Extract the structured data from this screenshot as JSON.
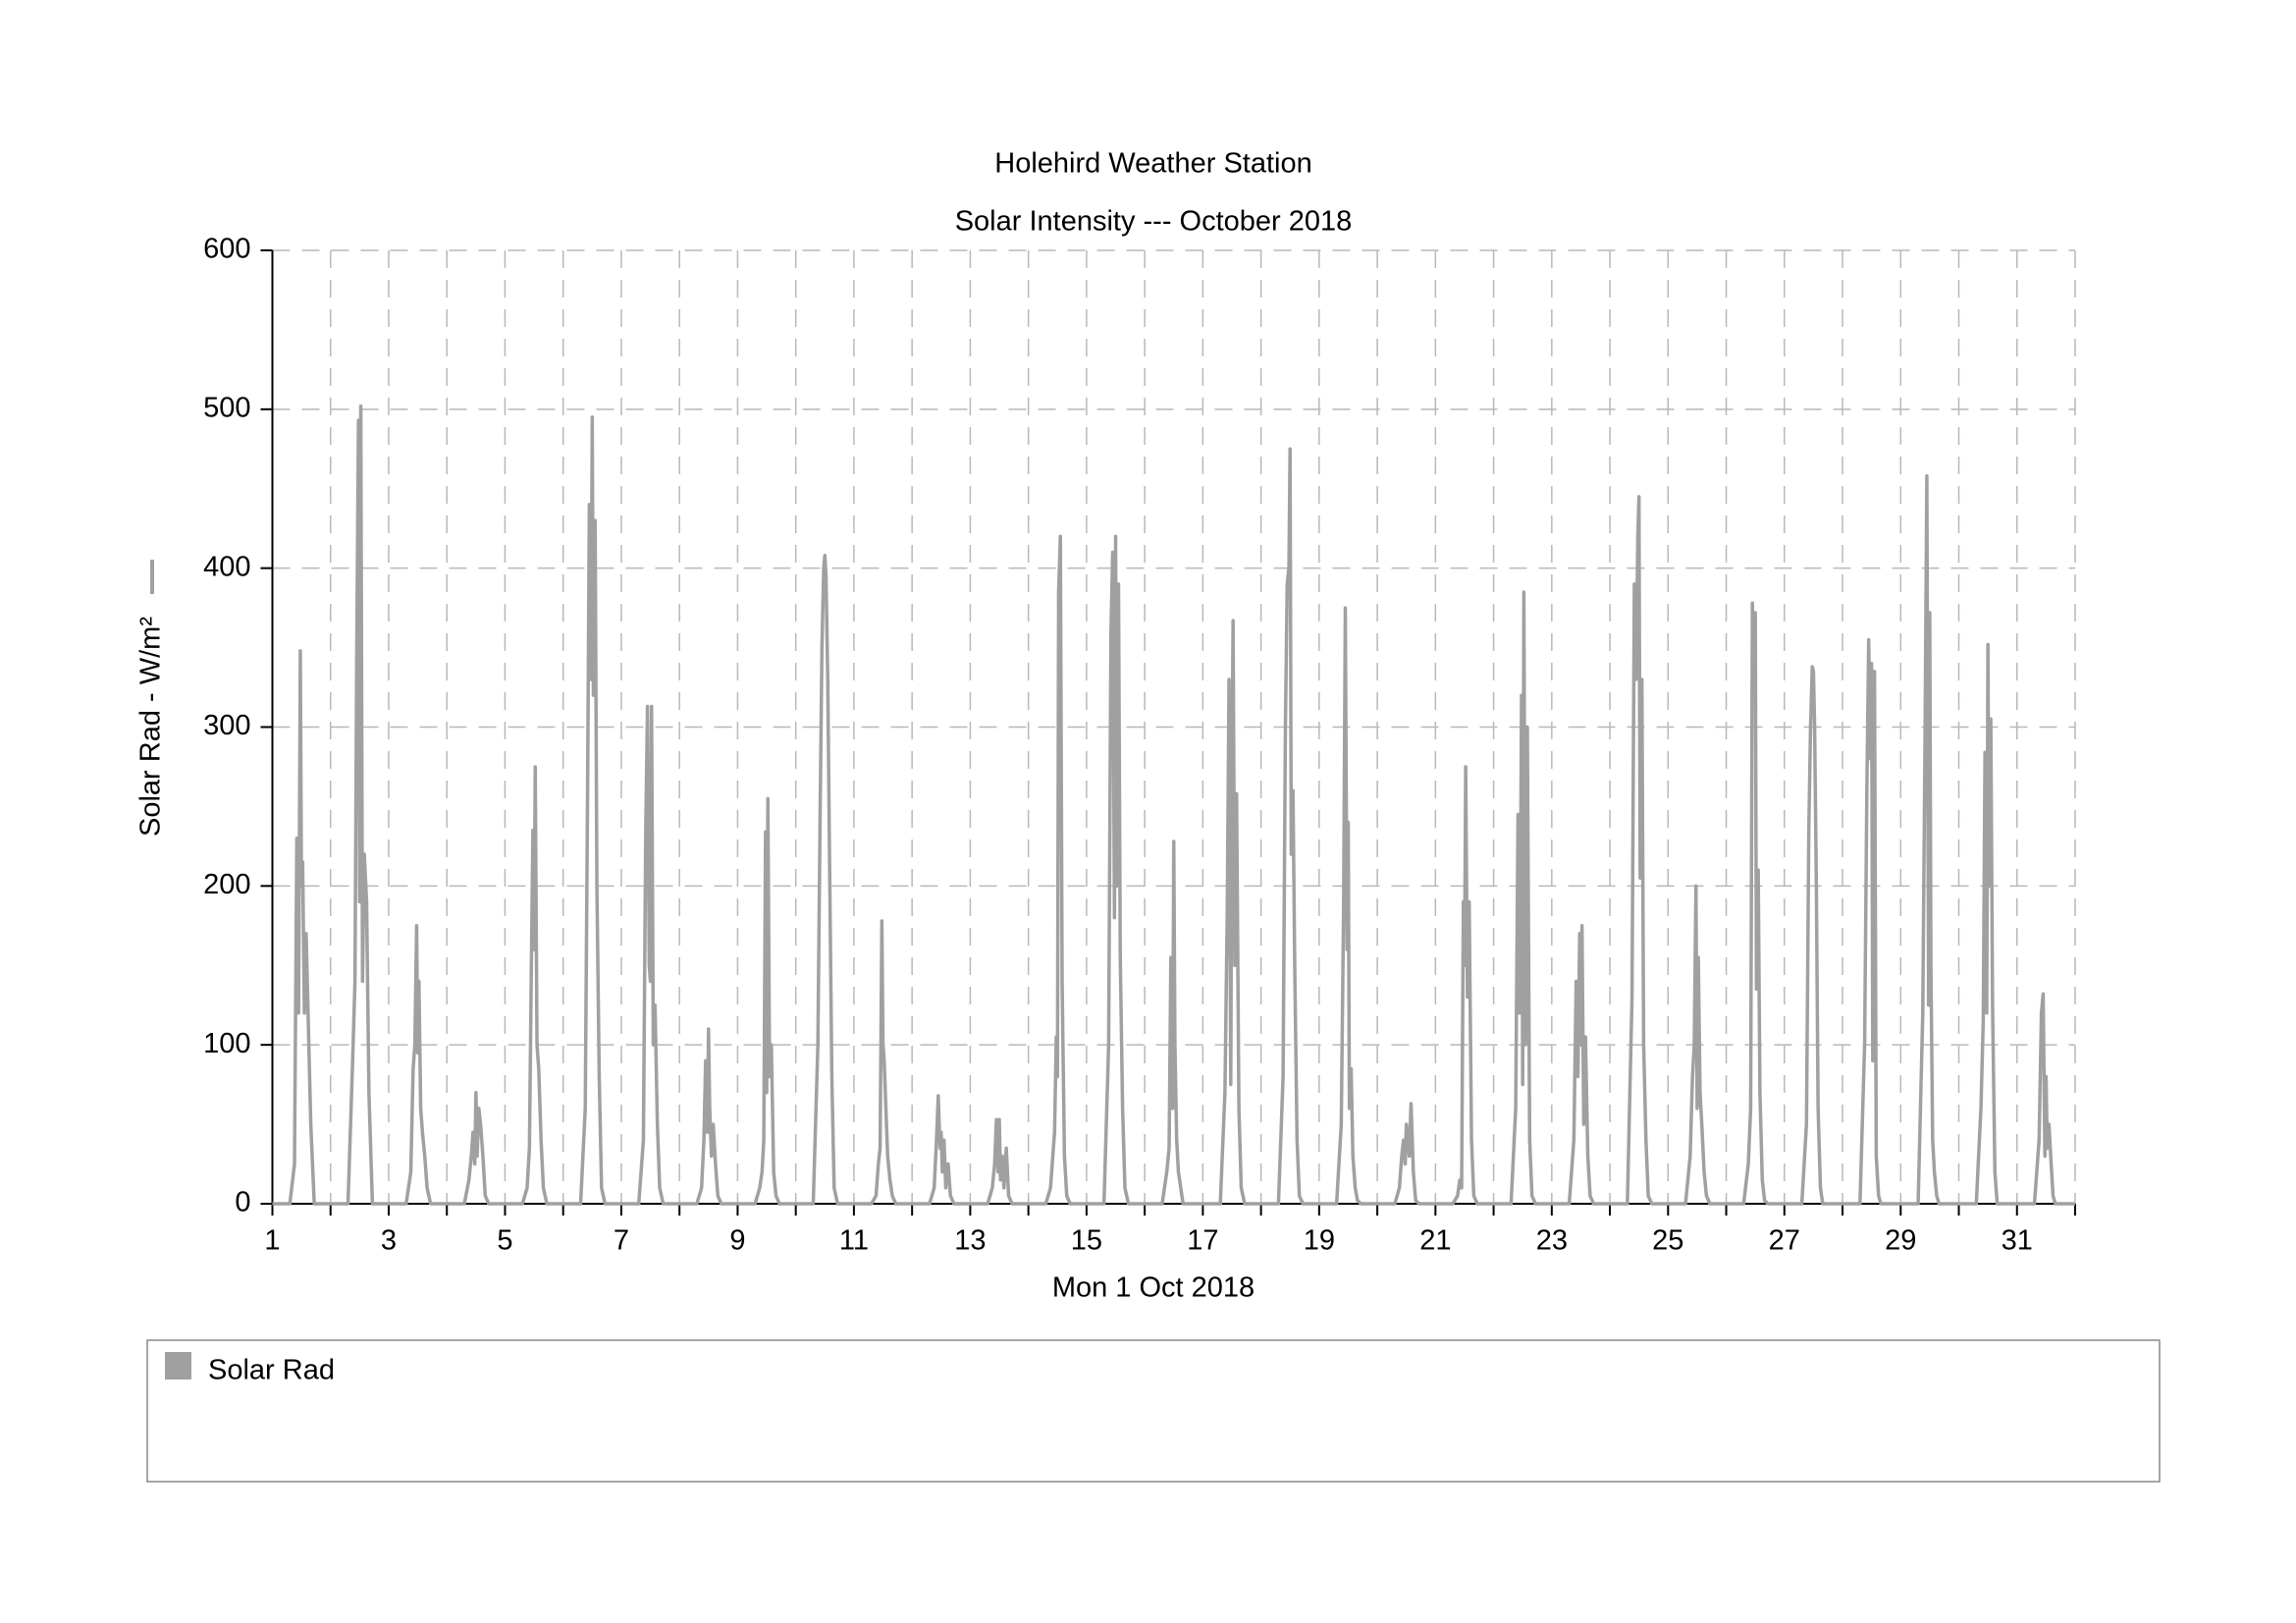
{
  "chart_data": {
    "type": "line",
    "title": "Holehird Weather Station",
    "subtitle": "Solar Intensity --- October 2018",
    "x_label": "Mon 1 Oct 2018",
    "y_label": "Solar Rad - W/m²",
    "xlim": [
      1,
      32
    ],
    "ylim": [
      0,
      600
    ],
    "xticks": [
      1,
      3,
      5,
      7,
      9,
      11,
      13,
      15,
      17,
      19,
      21,
      23,
      25,
      27,
      29,
      31
    ],
    "xminorticks": [
      2,
      4,
      6,
      8,
      10,
      12,
      14,
      16,
      18,
      20,
      22,
      24,
      26,
      28,
      30,
      32
    ],
    "yticks": [
      0,
      100,
      200,
      300,
      400,
      500,
      600
    ],
    "grid": true,
    "legend": "bottom",
    "x": [
      1,
      1.3,
      1.38,
      1.42,
      1.45,
      1.48,
      1.5,
      1.52,
      1.55,
      1.58,
      1.62,
      1.66,
      1.72,
      2.3,
      2.38,
      2.42,
      2.45,
      2.48,
      2.5,
      2.52,
      2.55,
      2.58,
      2.62,
      2.66,
      2.72,
      3.3,
      3.38,
      3.42,
      3.45,
      3.48,
      3.5,
      3.52,
      3.55,
      3.58,
      3.62,
      3.66,
      3.72,
      4.3,
      4.38,
      4.42,
      4.45,
      4.48,
      4.5,
      4.52,
      4.55,
      4.58,
      4.62,
      4.66,
      4.72,
      5.3,
      5.38,
      5.42,
      5.45,
      5.48,
      5.5,
      5.52,
      5.55,
      5.58,
      5.62,
      5.66,
      5.72,
      6.3,
      6.38,
      6.42,
      6.45,
      6.48,
      6.5,
      6.52,
      6.55,
      6.58,
      6.62,
      6.66,
      6.72,
      7.3,
      7.38,
      7.42,
      7.45,
      7.48,
      7.5,
      7.52,
      7.55,
      7.58,
      7.62,
      7.66,
      7.72,
      8.3,
      8.38,
      8.42,
      8.45,
      8.48,
      8.5,
      8.52,
      8.55,
      8.58,
      8.62,
      8.66,
      8.72,
      9.3,
      9.38,
      9.42,
      9.45,
      9.48,
      9.5,
      9.52,
      9.55,
      9.58,
      9.62,
      9.66,
      9.72,
      10.3,
      10.38,
      10.42,
      10.45,
      10.48,
      10.5,
      10.52,
      10.55,
      10.58,
      10.62,
      10.66,
      10.72,
      11.3,
      11.38,
      11.42,
      11.45,
      11.48,
      11.5,
      11.52,
      11.55,
      11.58,
      11.62,
      11.66,
      11.72,
      12.3,
      12.38,
      12.42,
      12.45,
      12.48,
      12.5,
      12.52,
      12.55,
      12.58,
      12.62,
      12.66,
      12.72,
      13.3,
      13.38,
      13.42,
      13.45,
      13.48,
      13.5,
      13.52,
      13.55,
      13.58,
      13.62,
      13.66,
      13.72,
      14.3,
      14.38,
      14.42,
      14.45,
      14.48,
      14.5,
      14.52,
      14.55,
      14.58,
      14.62,
      14.66,
      14.72,
      15.3,
      15.38,
      15.42,
      15.45,
      15.48,
      15.5,
      15.52,
      15.55,
      15.58,
      15.62,
      15.66,
      15.72,
      16.3,
      16.38,
      16.42,
      16.45,
      16.48,
      16.5,
      16.52,
      16.55,
      16.58,
      16.62,
      16.66,
      16.72,
      17.3,
      17.38,
      17.42,
      17.45,
      17.48,
      17.5,
      17.52,
      17.55,
      17.58,
      17.62,
      17.66,
      17.72,
      18.3,
      18.38,
      18.42,
      18.45,
      18.48,
      18.5,
      18.52,
      18.55,
      18.58,
      18.62,
      18.66,
      18.72,
      19.3,
      19.38,
      19.42,
      19.45,
      19.48,
      19.5,
      19.52,
      19.55,
      19.58,
      19.62,
      19.66,
      19.72,
      20.3,
      20.38,
      20.42,
      20.45,
      20.48,
      20.5,
      20.52,
      20.55,
      20.58,
      20.62,
      20.66,
      20.72,
      21.3,
      21.38,
      21.42,
      21.45,
      21.48,
      21.5,
      21.52,
      21.55,
      21.58,
      21.62,
      21.66,
      21.72,
      22.3,
      22.38,
      22.42,
      22.45,
      22.48,
      22.5,
      22.52,
      22.55,
      22.58,
      22.62,
      22.66,
      22.72,
      23.3,
      23.38,
      23.42,
      23.45,
      23.48,
      23.5,
      23.52,
      23.55,
      23.58,
      23.62,
      23.66,
      23.72,
      24.3,
      24.38,
      24.42,
      24.45,
      24.48,
      24.5,
      24.52,
      24.55,
      24.58,
      24.62,
      24.66,
      24.72,
      25.3,
      25.38,
      25.42,
      25.45,
      25.48,
      25.5,
      25.52,
      25.55,
      25.58,
      25.62,
      25.66,
      25.72,
      26.3,
      26.38,
      26.42,
      26.45,
      26.48,
      26.5,
      26.52,
      26.55,
      26.58,
      26.62,
      26.66,
      26.72,
      27.3,
      27.38,
      27.42,
      27.45,
      27.48,
      27.5,
      27.52,
      27.55,
      27.58,
      27.62,
      27.66,
      27.72,
      28.3,
      28.38,
      28.42,
      28.45,
      28.48,
      28.5,
      28.52,
      28.55,
      28.58,
      28.62,
      28.66,
      28.72,
      29.3,
      29.38,
      29.42,
      29.45,
      29.48,
      29.5,
      29.52,
      29.55,
      29.58,
      29.62,
      29.66,
      29.72,
      30.3,
      30.38,
      30.42,
      30.45,
      30.48,
      30.5,
      30.52,
      30.55,
      30.58,
      30.62,
      30.66,
      30.72,
      31.3,
      31.38,
      31.42,
      31.45,
      31.48,
      31.5,
      31.52,
      31.55,
      31.58,
      31.62,
      31.66,
      31.72,
      32
    ],
    "series": [
      {
        "name": "Solar Rad",
        "color": "#a0a0a0",
        "values": [
          0,
          0,
          25,
          230,
          120,
          348,
          200,
          215,
          120,
          170,
          110,
          50,
          0,
          0,
          90,
          140,
          345,
          493,
          190,
          502,
          140,
          220,
          190,
          70,
          0,
          0,
          20,
          85,
          100,
          175,
          95,
          140,
          60,
          45,
          30,
          10,
          0,
          0,
          15,
          30,
          45,
          25,
          70,
          30,
          60,
          50,
          30,
          5,
          0,
          0,
          10,
          35,
          140,
          235,
          160,
          275,
          100,
          85,
          40,
          10,
          0,
          0,
          60,
          260,
          440,
          330,
          495,
          320,
          430,
          200,
          80,
          10,
          0,
          0,
          40,
          235,
          313,
          150,
          140,
          313,
          100,
          125,
          50,
          10,
          0,
          0,
          10,
          40,
          90,
          45,
          110,
          60,
          30,
          50,
          25,
          5,
          0,
          0,
          10,
          20,
          40,
          234,
          70,
          255,
          80,
          100,
          20,
          5,
          0,
          0,
          100,
          250,
          350,
          400,
          408,
          395,
          330,
          220,
          80,
          10,
          0,
          0,
          5,
          25,
          35,
          178,
          100,
          90,
          60,
          30,
          15,
          5,
          0,
          0,
          10,
          40,
          68,
          35,
          45,
          20,
          40,
          10,
          25,
          5,
          0,
          0,
          10,
          25,
          53,
          20,
          53,
          15,
          30,
          10,
          35,
          5,
          0,
          0,
          10,
          30,
          45,
          105,
          80,
          385,
          420,
          140,
          30,
          5,
          0,
          0,
          100,
          360,
          410,
          180,
          420,
          200,
          390,
          155,
          60,
          10,
          0,
          0,
          20,
          35,
          155,
          60,
          228,
          100,
          40,
          20,
          10,
          0,
          0,
          0,
          70,
          185,
          330,
          75,
          270,
          367,
          150,
          258,
          60,
          10,
          0,
          0,
          80,
          300,
          390,
          400,
          475,
          220,
          260,
          150,
          40,
          5,
          0,
          0,
          50,
          185,
          375,
          160,
          240,
          60,
          85,
          30,
          10,
          2,
          0,
          0,
          10,
          30,
          40,
          25,
          50,
          45,
          30,
          63,
          20,
          2,
          0,
          0,
          5,
          15,
          10,
          190,
          150,
          275,
          130,
          190,
          40,
          5,
          0,
          0,
          60,
          245,
          120,
          320,
          75,
          385,
          100,
          300,
          40,
          5,
          0,
          0,
          40,
          140,
          80,
          170,
          100,
          175,
          50,
          105,
          30,
          5,
          0,
          0,
          130,
          390,
          330,
          420,
          445,
          205,
          330,
          100,
          40,
          5,
          0,
          0,
          30,
          80,
          100,
          200,
          60,
          155,
          70,
          50,
          20,
          5,
          0,
          0,
          25,
          60,
          378,
          320,
          372,
          135,
          210,
          70,
          15,
          2,
          0,
          0,
          50,
          235,
          300,
          338,
          335,
          300,
          200,
          60,
          10,
          0,
          0,
          0,
          100,
          265,
          355,
          280,
          340,
          90,
          335,
          30,
          5,
          0,
          0,
          0,
          120,
          300,
          458,
          125,
          372,
          150,
          40,
          20,
          5,
          0,
          0,
          0,
          60,
          115,
          284,
          120,
          352,
          200,
          305,
          125,
          20,
          0,
          0,
          0,
          40,
          120,
          132,
          30,
          80,
          35,
          50,
          30,
          5,
          0,
          0,
          0
        ]
      }
    ]
  }
}
